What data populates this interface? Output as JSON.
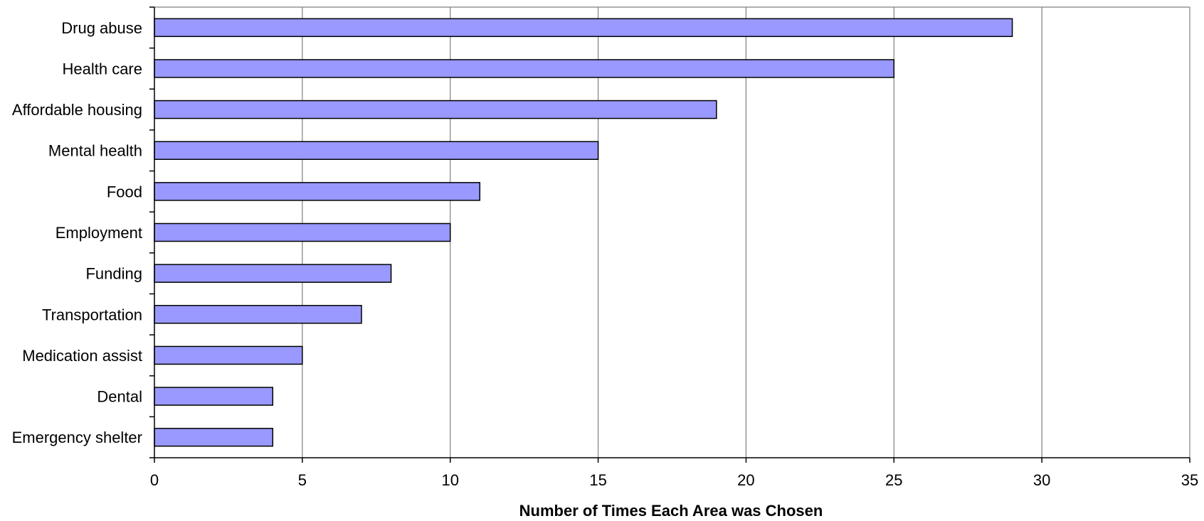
{
  "chart_data": {
    "type": "bar",
    "orientation": "horizontal",
    "categories": [
      "Drug abuse",
      "Health care",
      "Affordable housing",
      "Mental health",
      "Food",
      "Employment",
      "Funding",
      "Transportation",
      "Medication assist",
      "Dental",
      "Emergency shelter"
    ],
    "values": [
      29,
      25,
      19,
      15,
      11,
      10,
      8,
      7,
      5,
      4,
      4
    ],
    "title": "",
    "xlabel": "Number of Times Each Area was Chosen",
    "ylabel": "",
    "xlim": [
      0,
      35
    ],
    "xticks": [
      "0",
      "5",
      "10",
      "15",
      "20",
      "25",
      "30",
      "35"
    ],
    "grid": "vertical",
    "legend": "none",
    "colors": {
      "bar_fill": "#9999ff",
      "bar_stroke": "#000000",
      "grid": "#808080"
    }
  }
}
